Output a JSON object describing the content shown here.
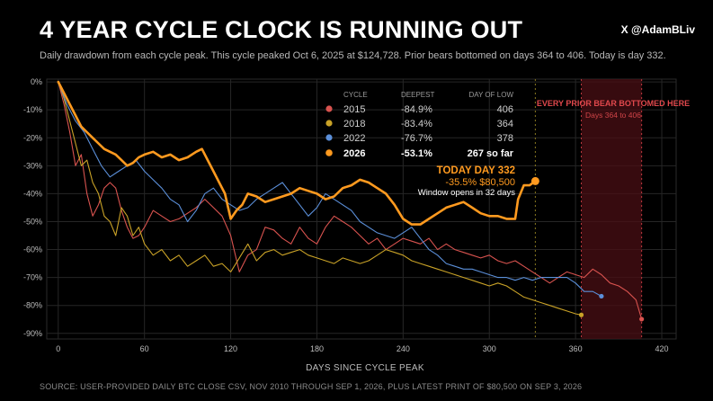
{
  "header": {
    "title": "4 YEAR CYCLE CLOCK IS RUNNING OUT",
    "handle": "X @AdamBLiv",
    "subtitle": "Daily drawdown from each cycle peak. This cycle peaked Oct 6, 2025 at $124,728. Prior bears bottomed on days 364 to 406. Today is day 332."
  },
  "footer": {
    "source": "SOURCE: USER-PROVIDED DAILY BTC CLOSE CSV, NOV 2010 THROUGH SEP 1, 2026, PLUS LATEST PRINT OF $80,500 ON SEP 3, 2026"
  },
  "legend_table": {
    "headers": [
      "CYCLE",
      "DEEPEST",
      "DAY OF LOW"
    ],
    "rows": [
      {
        "cycle": "2015",
        "deepest": "-84.9%",
        "day": "406",
        "color": "#d9534f"
      },
      {
        "cycle": "2018",
        "deepest": "-83.4%",
        "day": "364",
        "color": "#c9a227"
      },
      {
        "cycle": "2022",
        "deepest": "-76.7%",
        "day": "378",
        "color": "#5b8fd9"
      },
      {
        "cycle": "2026",
        "deepest": "-53.1%",
        "day": "267 so far",
        "color": "#ff9a1f"
      }
    ]
  },
  "annotations": {
    "today_title": "TODAY  DAY 332",
    "today_values": "-35.5%  $80,500",
    "window_note": "Window opens in 32 days",
    "zone_title": "EVERY PRIOR BEAR BOTTOMED HERE",
    "zone_sub": "Days 364 to 406"
  },
  "chart_data": {
    "type": "line",
    "xlabel": "DAYS SINCE CYCLE PEAK",
    "ylabel": "",
    "xlim": [
      -8,
      430
    ],
    "ylim": [
      -92,
      1
    ],
    "x_ticks": [
      0,
      60,
      120,
      180,
      240,
      300,
      360,
      420
    ],
    "y_ticks": [
      0,
      -10,
      -20,
      -30,
      -40,
      -50,
      -60,
      -70,
      -80,
      -90
    ],
    "y_tick_labels": [
      "0%",
      "-10%",
      "-20%",
      "-30%",
      "-40%",
      "-50%",
      "-60%",
      "-70%",
      "-80%",
      "-90%"
    ],
    "grid": true,
    "highlight_zone": {
      "x_start": 364,
      "x_end": 406
    },
    "today_marker_x": 332,
    "series": [
      {
        "name": "2015",
        "color": "#d9534f",
        "stroke_width": 1.1,
        "points": [
          [
            0,
            0
          ],
          [
            4,
            -8
          ],
          [
            8,
            -18
          ],
          [
            12,
            -30
          ],
          [
            16,
            -26
          ],
          [
            20,
            -40
          ],
          [
            24,
            -48
          ],
          [
            28,
            -44
          ],
          [
            32,
            -38
          ],
          [
            36,
            -36
          ],
          [
            40,
            -38
          ],
          [
            44,
            -46
          ],
          [
            48,
            -52
          ],
          [
            52,
            -56
          ],
          [
            56,
            -55
          ],
          [
            60,
            -52
          ],
          [
            66,
            -46
          ],
          [
            72,
            -48
          ],
          [
            78,
            -50
          ],
          [
            84,
            -49
          ],
          [
            90,
            -47
          ],
          [
            96,
            -45
          ],
          [
            102,
            -42
          ],
          [
            108,
            -45
          ],
          [
            114,
            -48
          ],
          [
            120,
            -55
          ],
          [
            126,
            -68
          ],
          [
            132,
            -62
          ],
          [
            138,
            -60
          ],
          [
            144,
            -52
          ],
          [
            150,
            -53
          ],
          [
            156,
            -56
          ],
          [
            162,
            -58
          ],
          [
            168,
            -52
          ],
          [
            174,
            -56
          ],
          [
            180,
            -58
          ],
          [
            186,
            -52
          ],
          [
            192,
            -48
          ],
          [
            198,
            -50
          ],
          [
            204,
            -52
          ],
          [
            210,
            -55
          ],
          [
            216,
            -58
          ],
          [
            222,
            -56
          ],
          [
            228,
            -60
          ],
          [
            234,
            -58
          ],
          [
            240,
            -56
          ],
          [
            246,
            -57
          ],
          [
            252,
            -58
          ],
          [
            258,
            -56
          ],
          [
            264,
            -60
          ],
          [
            270,
            -58
          ],
          [
            276,
            -60
          ],
          [
            282,
            -61
          ],
          [
            288,
            -62
          ],
          [
            294,
            -63
          ],
          [
            300,
            -62
          ],
          [
            306,
            -64
          ],
          [
            312,
            -65
          ],
          [
            318,
            -64
          ],
          [
            324,
            -66
          ],
          [
            330,
            -68
          ],
          [
            336,
            -70
          ],
          [
            342,
            -72
          ],
          [
            348,
            -70
          ],
          [
            354,
            -68
          ],
          [
            360,
            -69
          ],
          [
            366,
            -70
          ],
          [
            372,
            -67
          ],
          [
            378,
            -69
          ],
          [
            384,
            -72
          ],
          [
            390,
            -73
          ],
          [
            396,
            -75
          ],
          [
            402,
            -78
          ],
          [
            406,
            -84.9
          ]
        ]
      },
      {
        "name": "2018",
        "color": "#c9a227",
        "stroke_width": 1.1,
        "points": [
          [
            0,
            0
          ],
          [
            4,
            -6
          ],
          [
            8,
            -14
          ],
          [
            12,
            -22
          ],
          [
            16,
            -30
          ],
          [
            20,
            -28
          ],
          [
            24,
            -36
          ],
          [
            28,
            -40
          ],
          [
            32,
            -48
          ],
          [
            36,
            -50
          ],
          [
            40,
            -55
          ],
          [
            44,
            -45
          ],
          [
            48,
            -48
          ],
          [
            52,
            -55
          ],
          [
            56,
            -52
          ],
          [
            60,
            -58
          ],
          [
            66,
            -62
          ],
          [
            72,
            -60
          ],
          [
            78,
            -64
          ],
          [
            84,
            -62
          ],
          [
            90,
            -66
          ],
          [
            96,
            -64
          ],
          [
            102,
            -62
          ],
          [
            108,
            -66
          ],
          [
            114,
            -65
          ],
          [
            120,
            -68
          ],
          [
            126,
            -63
          ],
          [
            132,
            -58
          ],
          [
            138,
            -64
          ],
          [
            144,
            -61
          ],
          [
            150,
            -60
          ],
          [
            156,
            -62
          ],
          [
            162,
            -61
          ],
          [
            168,
            -60
          ],
          [
            174,
            -62
          ],
          [
            180,
            -63
          ],
          [
            186,
            -64
          ],
          [
            192,
            -65
          ],
          [
            198,
            -63
          ],
          [
            204,
            -64
          ],
          [
            210,
            -65
          ],
          [
            216,
            -64
          ],
          [
            222,
            -62
          ],
          [
            228,
            -60
          ],
          [
            234,
            -61
          ],
          [
            240,
            -62
          ],
          [
            246,
            -64
          ],
          [
            252,
            -65
          ],
          [
            258,
            -66
          ],
          [
            264,
            -67
          ],
          [
            270,
            -68
          ],
          [
            276,
            -69
          ],
          [
            282,
            -70
          ],
          [
            288,
            -71
          ],
          [
            294,
            -72
          ],
          [
            300,
            -73
          ],
          [
            306,
            -72
          ],
          [
            312,
            -73
          ],
          [
            318,
            -75
          ],
          [
            324,
            -77
          ],
          [
            330,
            -78
          ],
          [
            336,
            -79
          ],
          [
            342,
            -80
          ],
          [
            348,
            -81
          ],
          [
            354,
            -82
          ],
          [
            360,
            -83
          ],
          [
            364,
            -83.4
          ]
        ]
      },
      {
        "name": "2022",
        "color": "#5b8fd9",
        "stroke_width": 1.1,
        "points": [
          [
            0,
            0
          ],
          [
            6,
            -8
          ],
          [
            12,
            -14
          ],
          [
            18,
            -18
          ],
          [
            24,
            -24
          ],
          [
            30,
            -30
          ],
          [
            36,
            -34
          ],
          [
            42,
            -32
          ],
          [
            48,
            -30
          ],
          [
            54,
            -28
          ],
          [
            60,
            -32
          ],
          [
            66,
            -35
          ],
          [
            72,
            -38
          ],
          [
            78,
            -42
          ],
          [
            84,
            -44
          ],
          [
            90,
            -50
          ],
          [
            96,
            -46
          ],
          [
            102,
            -40
          ],
          [
            108,
            -38
          ],
          [
            114,
            -42
          ],
          [
            120,
            -44
          ],
          [
            126,
            -46
          ],
          [
            132,
            -45
          ],
          [
            138,
            -42
          ],
          [
            144,
            -40
          ],
          [
            150,
            -38
          ],
          [
            156,
            -36
          ],
          [
            162,
            -40
          ],
          [
            168,
            -44
          ],
          [
            174,
            -48
          ],
          [
            180,
            -45
          ],
          [
            186,
            -40
          ],
          [
            192,
            -42
          ],
          [
            198,
            -44
          ],
          [
            204,
            -46
          ],
          [
            210,
            -50
          ],
          [
            216,
            -52
          ],
          [
            222,
            -54
          ],
          [
            228,
            -55
          ],
          [
            234,
            -56
          ],
          [
            240,
            -54
          ],
          [
            246,
            -52
          ],
          [
            252,
            -56
          ],
          [
            258,
            -60
          ],
          [
            264,
            -62
          ],
          [
            270,
            -65
          ],
          [
            276,
            -66
          ],
          [
            282,
            -67
          ],
          [
            288,
            -67
          ],
          [
            294,
            -68
          ],
          [
            300,
            -69
          ],
          [
            306,
            -70
          ],
          [
            312,
            -70
          ],
          [
            318,
            -71
          ],
          [
            324,
            -70
          ],
          [
            330,
            -71
          ],
          [
            336,
            -70
          ],
          [
            342,
            -70
          ],
          [
            348,
            -70
          ],
          [
            354,
            -70
          ],
          [
            360,
            -72
          ],
          [
            366,
            -75
          ],
          [
            372,
            -75
          ],
          [
            378,
            -76.7
          ]
        ]
      },
      {
        "name": "2026",
        "color": "#ff9a1f",
        "stroke_width": 2.6,
        "points": [
          [
            0,
            0
          ],
          [
            4,
            -4
          ],
          [
            8,
            -8
          ],
          [
            12,
            -12
          ],
          [
            16,
            -16
          ],
          [
            20,
            -18
          ],
          [
            24,
            -20
          ],
          [
            28,
            -22
          ],
          [
            32,
            -24
          ],
          [
            36,
            -25
          ],
          [
            40,
            -26
          ],
          [
            44,
            -28
          ],
          [
            48,
            -30
          ],
          [
            52,
            -29
          ],
          [
            56,
            -27
          ],
          [
            60,
            -26
          ],
          [
            66,
            -25
          ],
          [
            72,
            -27
          ],
          [
            78,
            -26
          ],
          [
            84,
            -28
          ],
          [
            90,
            -27
          ],
          [
            96,
            -25
          ],
          [
            100,
            -24
          ],
          [
            104,
            -28
          ],
          [
            108,
            -32
          ],
          [
            112,
            -36
          ],
          [
            116,
            -40
          ],
          [
            120,
            -49
          ],
          [
            124,
            -46
          ],
          [
            128,
            -44
          ],
          [
            132,
            -40
          ],
          [
            138,
            -41
          ],
          [
            144,
            -43
          ],
          [
            150,
            -42
          ],
          [
            156,
            -41
          ],
          [
            162,
            -40
          ],
          [
            168,
            -38
          ],
          [
            174,
            -39
          ],
          [
            180,
            -40
          ],
          [
            186,
            -42
          ],
          [
            192,
            -41
          ],
          [
            198,
            -38
          ],
          [
            204,
            -37
          ],
          [
            210,
            -35
          ],
          [
            216,
            -36
          ],
          [
            222,
            -38
          ],
          [
            228,
            -40
          ],
          [
            234,
            -44
          ],
          [
            240,
            -49
          ],
          [
            246,
            -51
          ],
          [
            252,
            -51
          ],
          [
            258,
            -49
          ],
          [
            264,
            -47
          ],
          [
            270,
            -45
          ],
          [
            276,
            -44
          ],
          [
            282,
            -43
          ],
          [
            288,
            -45
          ],
          [
            294,
            -47
          ],
          [
            300,
            -48
          ],
          [
            306,
            -48
          ],
          [
            312,
            -49
          ],
          [
            318,
            -49
          ],
          [
            320,
            -42
          ],
          [
            324,
            -37
          ],
          [
            328,
            -37
          ],
          [
            332,
            -35.5
          ]
        ]
      }
    ]
  }
}
